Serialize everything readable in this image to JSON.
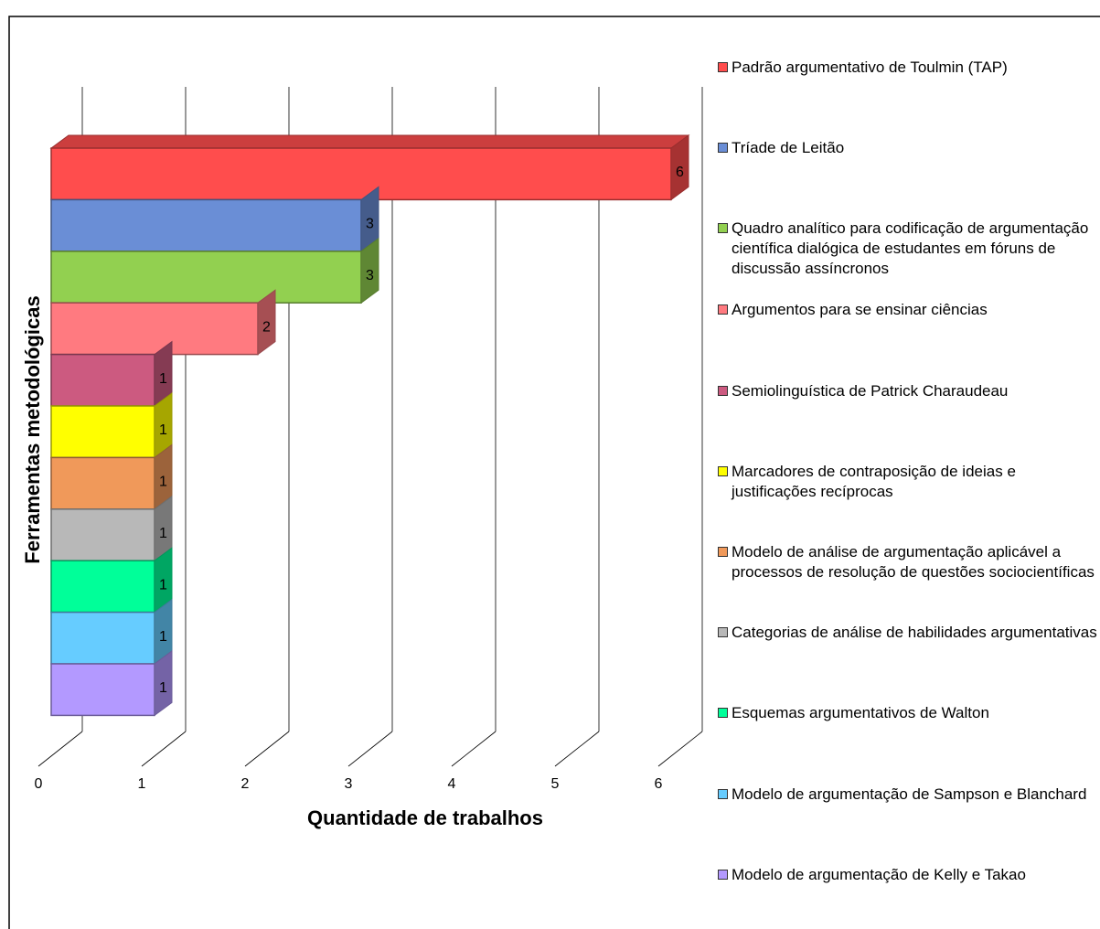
{
  "chart_data": {
    "type": "bar3d_horizontal",
    "y_label": "Ferramentas metodológicas",
    "x_label": "Quantidade de trabalhos",
    "xlim": [
      0,
      6
    ],
    "xticks": [
      0,
      1,
      2,
      3,
      4,
      5,
      6
    ],
    "grid": true,
    "legend": "right",
    "series": [
      {
        "name": "Padrão argumentativo de Toulmin (TAP)",
        "color": "#ff4d4d",
        "values": [
          6
        ]
      },
      {
        "name": "Tríade de Leitão",
        "color": "#6a8ed6",
        "values": [
          3
        ]
      },
      {
        "name": "Quadro analítico para codificação de argumentação científica dialógica de estudantes em fóruns de discussão assíncronos",
        "color": "#92d050",
        "values": [
          3
        ]
      },
      {
        "name": "Argumentos para se ensinar ciências",
        "color": "#ff7a80",
        "values": [
          2
        ]
      },
      {
        "name": "Semiolinguística de Patrick Charaudeau",
        "color": "#cc5a80",
        "values": [
          1
        ]
      },
      {
        "name": "Marcadores de contraposição de ideias e justificações recíprocas",
        "color": "#ffff00",
        "values": [
          1
        ]
      },
      {
        "name": "Modelo de análise de argumentação aplicável a processos de resolução de questões sociocientíficas",
        "color": "#f0995a",
        "values": [
          1
        ]
      },
      {
        "name": "Categorias de análise de habilidades argumentativas",
        "color": "#b8b8b8",
        "values": [
          1
        ]
      },
      {
        "name": "Esquemas argumentativos de Walton",
        "color": "#00ff99",
        "values": [
          1
        ]
      },
      {
        "name": "Modelo de argumentação de Sampson e Blanchard",
        "color": "#66ccff",
        "values": [
          1
        ]
      },
      {
        "name": "Modelo de argumentação de Kelly e Takao",
        "color": "#b399ff",
        "values": [
          1
        ]
      }
    ]
  }
}
